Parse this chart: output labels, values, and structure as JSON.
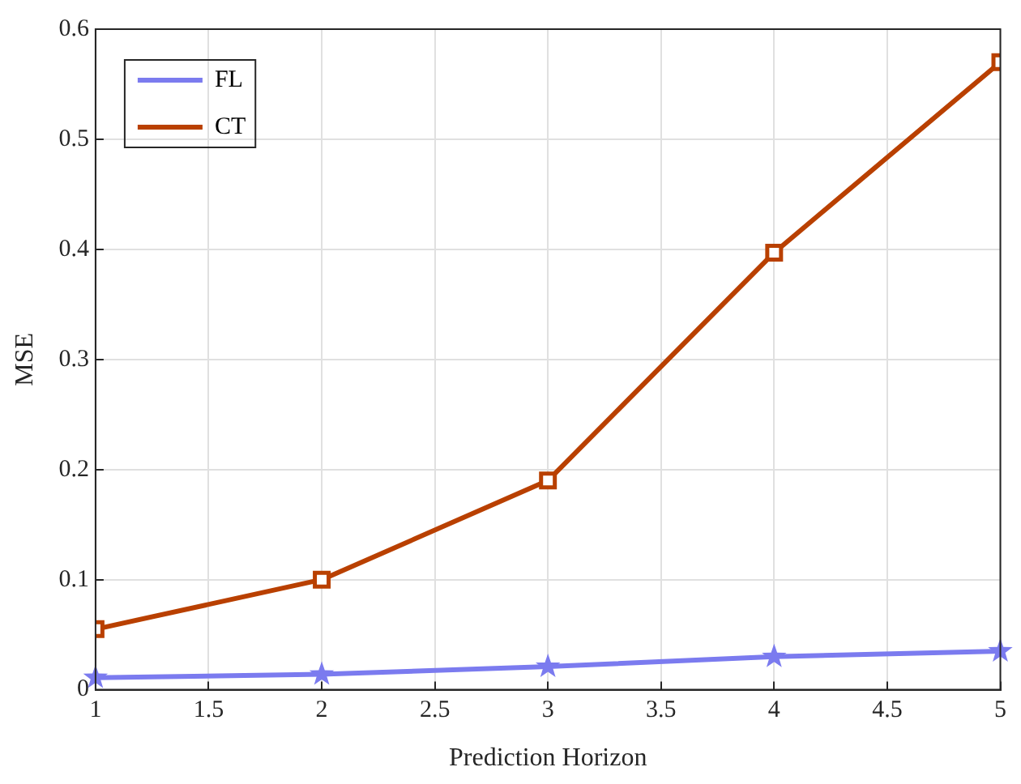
{
  "chart_data": {
    "type": "line",
    "xlabel": "Prediction Horizon",
    "ylabel": "MSE",
    "x": [
      1,
      2,
      3,
      4,
      5
    ],
    "series": [
      {
        "name": "FL",
        "color": "#7b7bef",
        "marker": "star",
        "values": [
          0.011,
          0.014,
          0.021,
          0.03,
          0.035
        ]
      },
      {
        "name": "CT",
        "color": "#b94000",
        "marker": "square",
        "values": [
          0.055,
          0.1,
          0.19,
          0.397,
          0.57
        ]
      }
    ],
    "xlim": [
      1,
      5
    ],
    "xticks": [
      1,
      1.5,
      2,
      2.5,
      3,
      3.5,
      4,
      4.5,
      5
    ],
    "ylim": [
      0,
      0.6
    ],
    "yticks": [
      0,
      0.1,
      0.2,
      0.3,
      0.4,
      0.5,
      0.6
    ],
    "grid": true,
    "legend": "top left",
    "line_style": "solid"
  }
}
